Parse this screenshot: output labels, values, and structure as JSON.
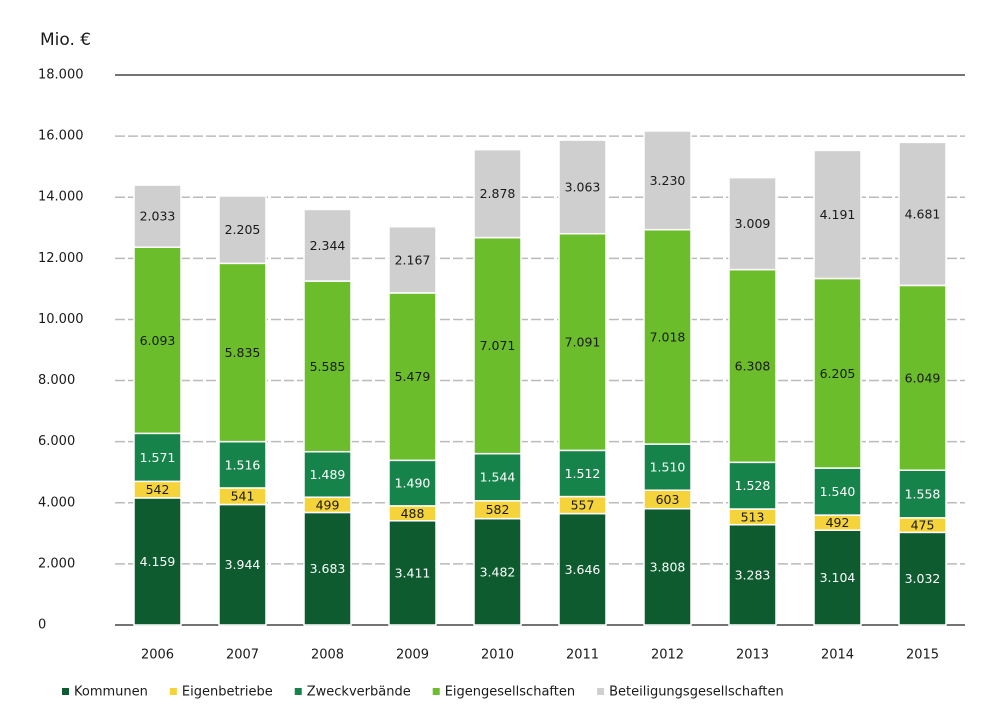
{
  "chart_data": {
    "type": "stacked_bar",
    "title": "Mio. €",
    "categories": [
      "2006",
      "2007",
      "2008",
      "2009",
      "2010",
      "2011",
      "2012",
      "2013",
      "2014",
      "2015"
    ],
    "series": [
      {
        "name": "Kommunen",
        "color": "#0d5b2f",
        "values": [
          4159,
          3944,
          3683,
          3411,
          3482,
          3646,
          3808,
          3283,
          3104,
          3032
        ],
        "value_labels": [
          "4.159",
          "3.944",
          "3.683",
          "3.411",
          "3.482",
          "3.646",
          "3.808",
          "3.283",
          "3.104",
          "3.032"
        ]
      },
      {
        "name": "Eigenbetriebe",
        "color": "#f5d33a",
        "values": [
          542,
          541,
          499,
          488,
          582,
          557,
          603,
          513,
          492,
          475
        ],
        "value_labels": [
          "542",
          "541",
          "499",
          "488",
          "582",
          "557",
          "603",
          "513",
          "492",
          "475"
        ]
      },
      {
        "name": "Zweckverbände",
        "color": "#16834a",
        "values": [
          1571,
          1516,
          1489,
          1490,
          1544,
          1512,
          1510,
          1528,
          1540,
          1558
        ],
        "value_labels": [
          "1.571",
          "1.516",
          "1.489",
          "1.490",
          "1.544",
          "1.512",
          "1.510",
          "1.528",
          "1.540",
          "1.558"
        ]
      },
      {
        "name": "Eigengesellschaften",
        "color": "#6cbd2b",
        "values": [
          6093,
          5835,
          5585,
          5479,
          7071,
          7091,
          7018,
          6308,
          6205,
          6049
        ],
        "value_labels": [
          "6.093",
          "5.835",
          "5.585",
          "5.479",
          "7.071",
          "7.091",
          "7.018",
          "6.308",
          "6.205",
          "6.049"
        ]
      },
      {
        "name": "Beteiligungsgesellschaften",
        "color": "#cfcfcf",
        "values": [
          2033,
          2205,
          2344,
          2167,
          2878,
          3063,
          3230,
          3009,
          4191,
          4681
        ],
        "value_labels": [
          "2.033",
          "2.205",
          "2.344",
          "2.167",
          "2.878",
          "3.063",
          "3.230",
          "3.009",
          "4.191",
          "4.681"
        ]
      }
    ],
    "ylim": [
      0,
      18000
    ],
    "yticks": [
      0,
      {
        "value": 2000,
        "label": "2.000"
      },
      {
        "value": 4000,
        "label": "4.000"
      },
      {
        "value": 6000,
        "label": "6.000"
      },
      {
        "value": 8000,
        "label": "8.000"
      },
      {
        "value": 10000,
        "label": "10.000"
      },
      {
        "value": 12000,
        "label": "12.000"
      },
      {
        "value": 14000,
        "label": "14.000"
      },
      {
        "value": 16000,
        "label": "16.000"
      },
      {
        "value": 18000,
        "label": "18.000"
      }
    ],
    "grid": true,
    "legend": "bottom"
  }
}
